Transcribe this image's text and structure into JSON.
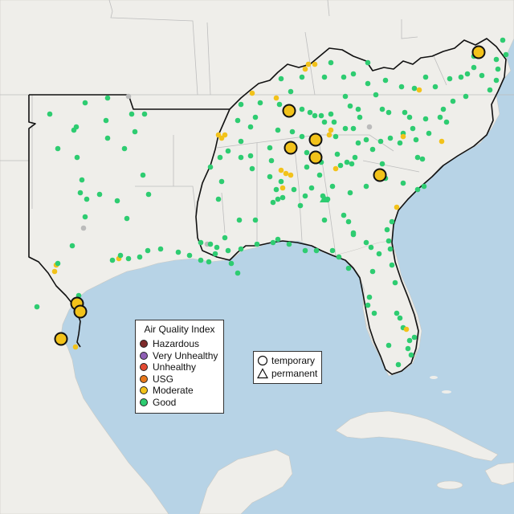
{
  "legend": {
    "title": "Air Quality Index",
    "categories": [
      {
        "label": "Hazardous",
        "color": "#7e2a2a"
      },
      {
        "label": "Very Unhealthy",
        "color": "#8f5fb5"
      },
      {
        "label": "Unhealthy",
        "color": "#e34a33"
      },
      {
        "label": "USG",
        "color": "#e8781a"
      },
      {
        "label": "Moderate",
        "color": "#f2c21a"
      },
      {
        "label": "Good",
        "color": "#2ecc71"
      }
    ]
  },
  "type_legend": {
    "temporary": "temporary",
    "permanent": "permanent"
  },
  "colors": {
    "ocean": "#b7d3e6",
    "land": "#efeeea",
    "region_border": "#111111",
    "state_border": "#bdbdbd",
    "good": "#2ecc71",
    "moderate": "#f2c21a",
    "no_data": "#bbbbbb"
  }
}
